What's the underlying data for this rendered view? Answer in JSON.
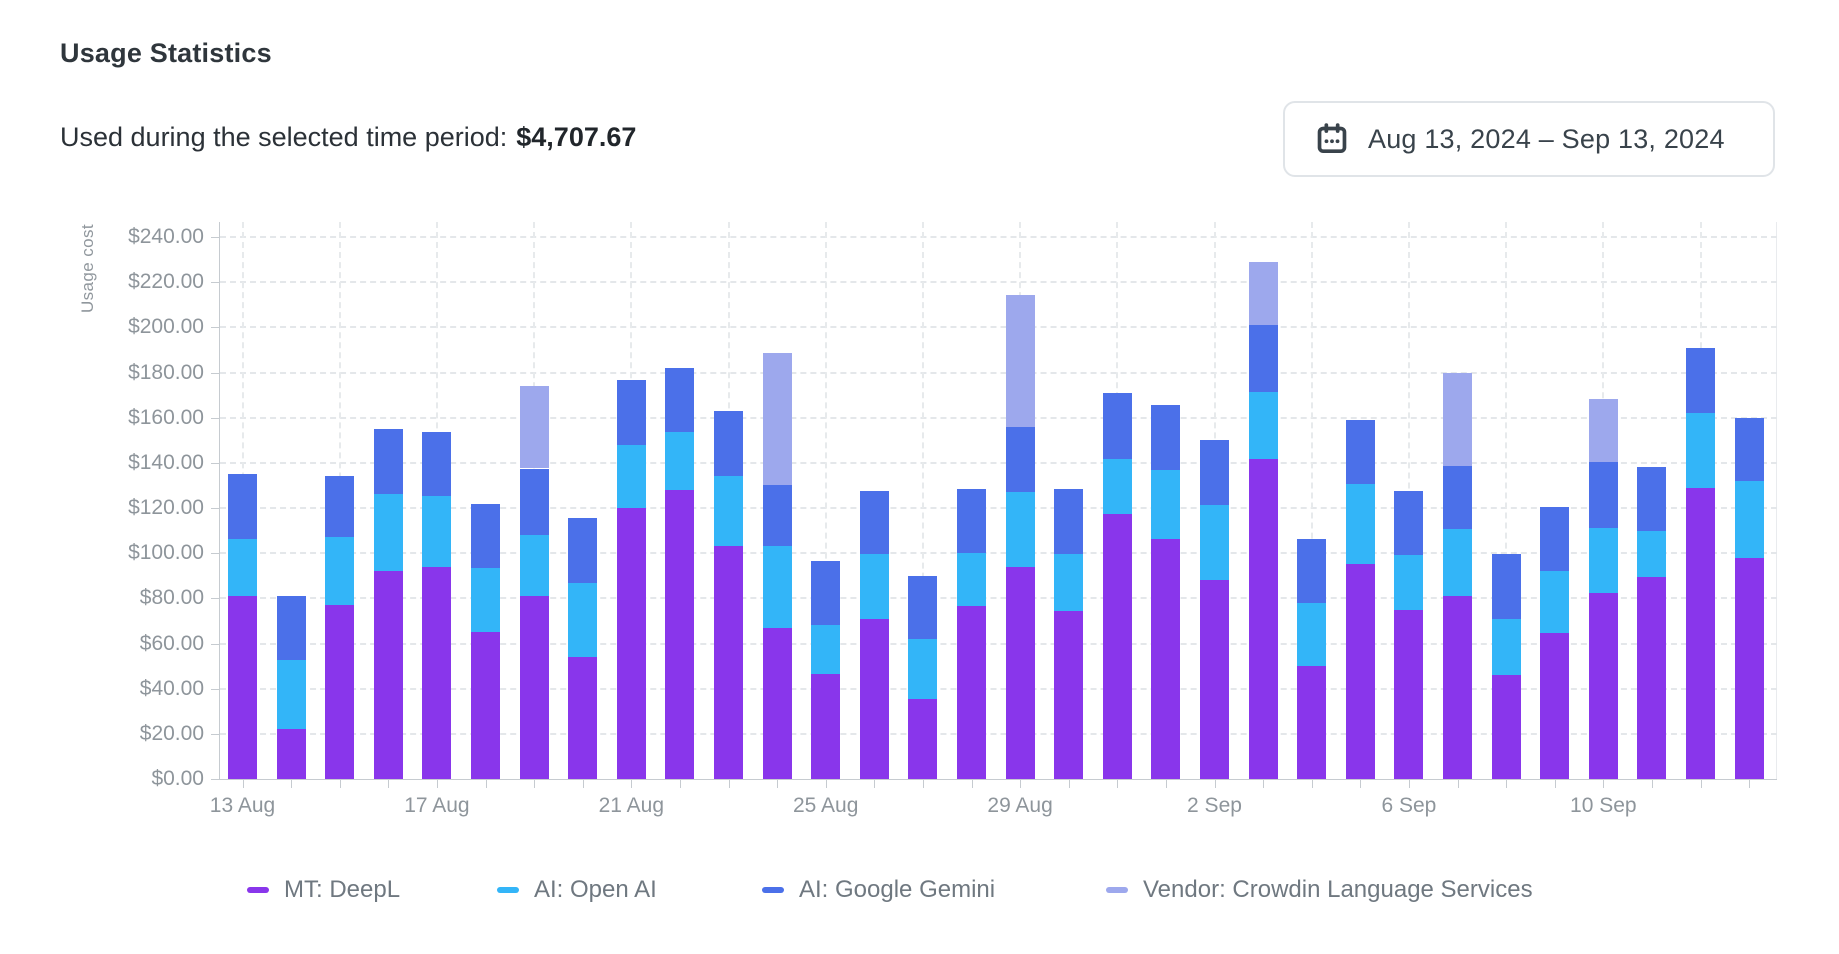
{
  "page": {
    "title": "Usage Statistics"
  },
  "summary": {
    "label": "Used during the selected time period:",
    "amount": "$4,707.67"
  },
  "date_range": {
    "label": "Aug 13, 2024 – Sep 13, 2024"
  },
  "chart_data": {
    "type": "bar",
    "stacked": true,
    "ylabel": "Usage cost",
    "ylim": [
      0,
      240
    ],
    "ytick_step": 20,
    "ytick_prefix": "$",
    "grid": true,
    "legend_position": "bottom",
    "categories": [
      "13 Aug",
      "14 Aug",
      "15 Aug",
      "16 Aug",
      "17 Aug",
      "18 Aug",
      "19 Aug",
      "20 Aug",
      "21 Aug",
      "22 Aug",
      "23 Aug",
      "24 Aug",
      "25 Aug",
      "26 Aug",
      "27 Aug",
      "28 Aug",
      "29 Aug",
      "30 Aug",
      "31 Aug",
      "1 Sep",
      "2 Sep",
      "3 Sep",
      "4 Sep",
      "5 Sep",
      "6 Sep",
      "7 Sep",
      "8 Sep",
      "9 Sep",
      "10 Sep",
      "11 Sep",
      "12 Sep",
      "13 Sep"
    ],
    "xtick_labels_shown": [
      "13 Aug",
      "17 Aug",
      "21 Aug",
      "25 Aug",
      "29 Aug",
      "2 Sep",
      "6 Sep",
      "10 Sep"
    ],
    "series": [
      {
        "name": "MT: DeepL",
        "color": "#8936EB",
        "values": [
          81,
          22,
          77,
          92,
          94,
          65,
          81,
          54,
          120,
          128,
          103,
          67,
          46.5,
          71,
          35.5,
          76.5,
          94,
          74.5,
          117.5,
          106.5,
          88,
          141.5,
          50,
          95,
          75,
          81,
          46,
          64.5,
          82.5,
          89.5,
          129,
          98
        ]
      },
      {
        "name": "AI: Open AI",
        "color": "#33B5F8",
        "values": [
          25.5,
          30.5,
          30,
          34,
          31.5,
          28.5,
          27,
          33,
          28,
          25.5,
          31,
          36,
          21.5,
          28.5,
          26.5,
          23.5,
          33,
          25,
          24,
          30.5,
          33.5,
          30,
          28,
          35.5,
          24,
          29.5,
          25,
          27.5,
          28.5,
          20.5,
          33,
          34
        ]
      },
      {
        "name": "AI: Google Gemini",
        "color": "#4B70E9",
        "values": [
          28.5,
          28.5,
          27,
          29,
          28,
          28.5,
          29.5,
          28.5,
          28.5,
          28.5,
          29,
          27,
          28.5,
          28,
          28,
          28.5,
          29,
          29,
          29.5,
          28.5,
          28.5,
          29.5,
          28.5,
          28.5,
          28.5,
          28,
          28.5,
          28.5,
          29.5,
          28,
          29,
          28
        ]
      },
      {
        "name": "Vendor: Crowdin Language Services",
        "color": "#9DA8ED",
        "values": [
          0,
          0,
          0,
          0,
          0,
          0,
          36.5,
          0,
          0,
          0,
          0,
          58.5,
          0,
          0,
          0,
          0,
          58.5,
          0,
          0,
          0,
          0,
          28,
          0,
          0,
          0,
          41.5,
          0,
          0,
          28,
          0,
          0,
          0
        ]
      }
    ]
  }
}
